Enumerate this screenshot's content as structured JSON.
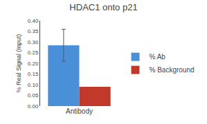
{
  "chart_data": {
    "type": "bar",
    "title": "HDAC1 onto p21",
    "ylabel": "% Real Signal (Input)",
    "categories": [
      "Antibody"
    ],
    "series": [
      {
        "name": "% Ab",
        "color": "#4A90D9",
        "values": [
          0.285
        ],
        "error": [
          0.075
        ]
      },
      {
        "name": "% Background",
        "color": "#C0392B",
        "values": [
          0.09
        ]
      }
    ],
    "ylim": [
      0.0,
      0.4
    ],
    "yticks": [
      {
        "value": 0.0,
        "label": "0.00"
      },
      0.05,
      {
        "value": 0.1,
        "label": "0.10"
      },
      0.15,
      {
        "value": 0.2,
        "label": "0.20"
      },
      0.25,
      {
        "value": 0.3,
        "label": "0.30"
      },
      0.35,
      {
        "value": 0.4,
        "label": "0.40"
      }
    ],
    "grid": false,
    "legend": "right"
  }
}
